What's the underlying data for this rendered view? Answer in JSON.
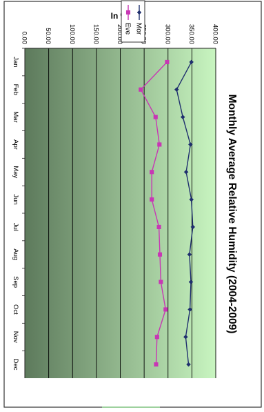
{
  "chart_data": {
    "type": "line",
    "title": "Monthly Average Relative Humidity (2004-2009)",
    "xlabel": "",
    "ylabel": "In %",
    "categories": [
      "Jan",
      "Feb",
      "Mar",
      "Apr",
      "May",
      "Jun",
      "Jul",
      "Aug",
      "Sep",
      "Oct",
      "Nov",
      "Dec"
    ],
    "series": [
      {
        "name": "Mor",
        "color": "#1f2f6e",
        "marker": "diamond",
        "values": [
          349,
          318,
          331,
          347,
          338,
          349,
          352,
          345,
          348,
          346,
          337,
          343
        ]
      },
      {
        "name": "Eve",
        "color": "#c836b4",
        "marker": "square",
        "values": [
          298,
          243,
          274,
          282,
          266,
          266,
          281,
          283,
          285,
          295,
          277,
          275
        ]
      }
    ],
    "ylim": [
      0,
      400
    ],
    "yticks": [
      "0.00",
      "50.00",
      "100.00",
      "150.00",
      "200.00",
      "250.00",
      "300.00",
      "350.00",
      "400.00"
    ],
    "grid": "horizontal",
    "legend": "top-right",
    "background_gradient": [
      "#c8f5c0",
      "#5d7a5c"
    ]
  }
}
